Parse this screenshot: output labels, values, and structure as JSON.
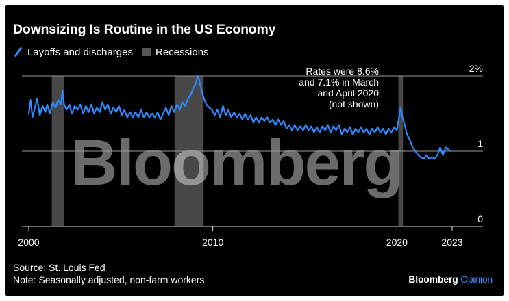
{
  "title": "Downsizing Is Routine in the US Economy",
  "legend": {
    "series_label": "Layoffs and discharges",
    "recessions_label": "Recessions"
  },
  "annotation": {
    "lines": [
      "Rates were 8.6%",
      "and 7.1% in March",
      "and April 2020",
      "(not shown)"
    ]
  },
  "watermark": "Bloomberg",
  "source": "Source: St. Louis Fed",
  "note": "Note: Seasonally adjusted, non-farm workers",
  "brand": {
    "name": "Bloomberg",
    "suffix": "Opinion"
  },
  "colors": {
    "series": "#2e8bff",
    "recession": "#555555",
    "grid": "#9a9a9a",
    "background": "#000000",
    "text": "#ffffff"
  },
  "chart_data": {
    "type": "line",
    "title": "Downsizing Is Routine in the US Economy",
    "xlabel": "",
    "ylabel": "",
    "x_ticks": [
      {
        "value": 2000,
        "label": "2000"
      },
      {
        "value": 2010,
        "label": "2010"
      },
      {
        "value": 2020,
        "label": "2020"
      },
      {
        "value": 2023,
        "label": "2023"
      }
    ],
    "y_ticks": [
      {
        "value": 0,
        "label": "0"
      },
      {
        "value": 1,
        "label": "1"
      },
      {
        "value": 2,
        "label": "2%"
      }
    ],
    "xlim": [
      2000,
      2023
    ],
    "ylim": [
      0,
      2
    ],
    "grid": true,
    "recessions": [
      {
        "start": 2001.25,
        "end": 2001.92
      },
      {
        "start": 2007.92,
        "end": 2009.5
      },
      {
        "start": 2020.08,
        "end": 2020.33
      }
    ],
    "series": [
      {
        "name": "Layoffs and discharges",
        "points": [
          [
            2000.0,
            1.5
          ],
          [
            2000.1,
            1.68
          ],
          [
            2000.2,
            1.45
          ],
          [
            2000.3,
            1.55
          ],
          [
            2000.45,
            1.7
          ],
          [
            2000.6,
            1.48
          ],
          [
            2000.75,
            1.6
          ],
          [
            2000.9,
            1.52
          ],
          [
            2001.0,
            1.62
          ],
          [
            2001.15,
            1.5
          ],
          [
            2001.3,
            1.65
          ],
          [
            2001.45,
            1.58
          ],
          [
            2001.6,
            1.68
          ],
          [
            2001.75,
            1.62
          ],
          [
            2001.83,
            1.8
          ],
          [
            2001.92,
            1.62
          ],
          [
            2002.05,
            1.55
          ],
          [
            2002.2,
            1.62
          ],
          [
            2002.35,
            1.5
          ],
          [
            2002.5,
            1.6
          ],
          [
            2002.65,
            1.55
          ],
          [
            2002.8,
            1.62
          ],
          [
            2002.95,
            1.5
          ],
          [
            2003.1,
            1.6
          ],
          [
            2003.25,
            1.52
          ],
          [
            2003.4,
            1.62
          ],
          [
            2003.55,
            1.5
          ],
          [
            2003.7,
            1.58
          ],
          [
            2003.85,
            1.52
          ],
          [
            2004.0,
            1.65
          ],
          [
            2004.15,
            1.55
          ],
          [
            2004.3,
            1.62
          ],
          [
            2004.45,
            1.5
          ],
          [
            2004.6,
            1.58
          ],
          [
            2004.75,
            1.52
          ],
          [
            2004.9,
            1.6
          ],
          [
            2005.05,
            1.48
          ],
          [
            2005.2,
            1.55
          ],
          [
            2005.35,
            1.45
          ],
          [
            2005.5,
            1.52
          ],
          [
            2005.65,
            1.45
          ],
          [
            2005.8,
            1.52
          ],
          [
            2005.95,
            1.45
          ],
          [
            2006.1,
            1.55
          ],
          [
            2006.25,
            1.45
          ],
          [
            2006.4,
            1.52
          ],
          [
            2006.55,
            1.45
          ],
          [
            2006.7,
            1.5
          ],
          [
            2006.85,
            1.45
          ],
          [
            2007.0,
            1.52
          ],
          [
            2007.15,
            1.42
          ],
          [
            2007.3,
            1.5
          ],
          [
            2007.45,
            1.58
          ],
          [
            2007.6,
            1.48
          ],
          [
            2007.75,
            1.6
          ],
          [
            2007.9,
            1.52
          ],
          [
            2008.05,
            1.62
          ],
          [
            2008.2,
            1.55
          ],
          [
            2008.35,
            1.65
          ],
          [
            2008.5,
            1.6
          ],
          [
            2008.65,
            1.7
          ],
          [
            2008.8,
            1.75
          ],
          [
            2008.95,
            1.85
          ],
          [
            2009.08,
            1.9
          ],
          [
            2009.17,
            2.0
          ],
          [
            2009.25,
            1.95
          ],
          [
            2009.35,
            1.85
          ],
          [
            2009.45,
            1.75
          ],
          [
            2009.55,
            1.68
          ],
          [
            2009.65,
            1.62
          ],
          [
            2009.8,
            1.58
          ],
          [
            2009.95,
            1.55
          ],
          [
            2010.1,
            1.48
          ],
          [
            2010.25,
            1.55
          ],
          [
            2010.4,
            1.45
          ],
          [
            2010.55,
            1.6
          ],
          [
            2010.7,
            1.48
          ],
          [
            2010.85,
            1.55
          ],
          [
            2011.0,
            1.45
          ],
          [
            2011.15,
            1.52
          ],
          [
            2011.3,
            1.45
          ],
          [
            2011.45,
            1.5
          ],
          [
            2011.6,
            1.42
          ],
          [
            2011.75,
            1.5
          ],
          [
            2011.9,
            1.42
          ],
          [
            2012.05,
            1.48
          ],
          [
            2012.2,
            1.38
          ],
          [
            2012.35,
            1.45
          ],
          [
            2012.5,
            1.38
          ],
          [
            2012.65,
            1.45
          ],
          [
            2012.8,
            1.4
          ],
          [
            2012.95,
            1.45
          ],
          [
            2013.1,
            1.38
          ],
          [
            2013.25,
            1.42
          ],
          [
            2013.4,
            1.35
          ],
          [
            2013.55,
            1.42
          ],
          [
            2013.7,
            1.35
          ],
          [
            2013.85,
            1.4
          ],
          [
            2014.0,
            1.3
          ],
          [
            2014.15,
            1.35
          ],
          [
            2014.3,
            1.28
          ],
          [
            2014.45,
            1.35
          ],
          [
            2014.6,
            1.28
          ],
          [
            2014.75,
            1.33
          ],
          [
            2014.9,
            1.28
          ],
          [
            2015.05,
            1.35
          ],
          [
            2015.2,
            1.28
          ],
          [
            2015.35,
            1.33
          ],
          [
            2015.5,
            1.25
          ],
          [
            2015.65,
            1.32
          ],
          [
            2015.8,
            1.25
          ],
          [
            2015.95,
            1.33
          ],
          [
            2016.1,
            1.28
          ],
          [
            2016.25,
            1.35
          ],
          [
            2016.4,
            1.25
          ],
          [
            2016.55,
            1.33
          ],
          [
            2016.7,
            1.28
          ],
          [
            2016.85,
            1.35
          ],
          [
            2017.0,
            1.22
          ],
          [
            2017.15,
            1.3
          ],
          [
            2017.3,
            1.25
          ],
          [
            2017.45,
            1.32
          ],
          [
            2017.6,
            1.22
          ],
          [
            2017.75,
            1.3
          ],
          [
            2017.9,
            1.25
          ],
          [
            2018.05,
            1.32
          ],
          [
            2018.2,
            1.25
          ],
          [
            2018.35,
            1.3
          ],
          [
            2018.5,
            1.22
          ],
          [
            2018.65,
            1.3
          ],
          [
            2018.8,
            1.25
          ],
          [
            2018.95,
            1.32
          ],
          [
            2019.1,
            1.25
          ],
          [
            2019.25,
            1.3
          ],
          [
            2019.4,
            1.22
          ],
          [
            2019.55,
            1.3
          ],
          [
            2019.7,
            1.25
          ],
          [
            2019.85,
            1.32
          ],
          [
            2020.0,
            1.28
          ],
          [
            2020.08,
            1.4
          ],
          [
            2020.2,
            1.58
          ],
          [
            2020.3,
            1.45
          ],
          [
            2020.42,
            1.35
          ],
          [
            2020.55,
            1.22
          ],
          [
            2020.7,
            1.15
          ],
          [
            2020.85,
            1.05
          ],
          [
            2021.0,
            1.0
          ],
          [
            2021.15,
            0.95
          ],
          [
            2021.3,
            0.92
          ],
          [
            2021.45,
            0.9
          ],
          [
            2021.6,
            0.95
          ],
          [
            2021.75,
            0.9
          ],
          [
            2021.9,
            0.92
          ],
          [
            2022.05,
            0.9
          ],
          [
            2022.2,
            0.95
          ],
          [
            2022.35,
            1.05
          ],
          [
            2022.5,
            0.95
          ],
          [
            2022.65,
            1.05
          ],
          [
            2022.8,
            1.02
          ],
          [
            2022.95,
            1.0
          ]
        ]
      }
    ]
  }
}
